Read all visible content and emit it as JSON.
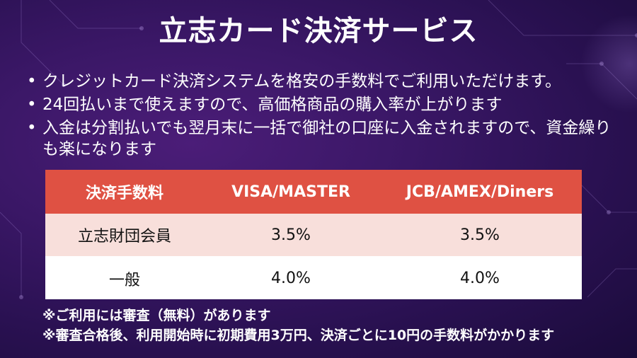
{
  "slide": {
    "title": "立志カード決済サービス",
    "bullet_symbol": "•",
    "bullets": [
      "クレジットカード決済システムを格安の手数料でご利用いただけます。",
      "24回払いまで使えますので、高価格商品の購入率が上がります",
      "入金は分割払いでも翌月末に一括で御社の口座に入金されますので、資金繰りも楽になります"
    ],
    "table": {
      "headers": [
        "決済手数料",
        "VISA/MASTER",
        "JCB/AMEX/Diners"
      ],
      "rows": [
        [
          "立志財団会員",
          "3.5%",
          "3.5%"
        ],
        [
          "一般",
          "4.0%",
          "4.0%"
        ]
      ]
    },
    "notes": [
      "※ご利用には審査（無料）があります",
      "※審査合格後、利用開始時に初期費用3万円、決済ごとに10円の手数料がかかります"
    ]
  },
  "colors": {
    "background": "#2a1152",
    "header_red": "#df5143",
    "row_pink": "#f8dfdb",
    "row_white": "#ffffff"
  }
}
